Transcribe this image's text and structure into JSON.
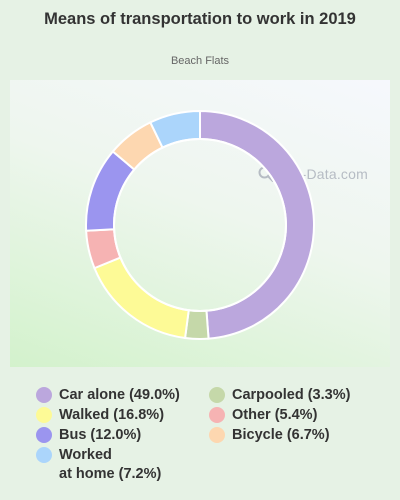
{
  "title": "Means of transportation to work in 2019",
  "subtitle": "Beach Flats",
  "watermark": "City-Data.com",
  "watermark_icon": "magnifier-icon",
  "chart_data": {
    "type": "pie",
    "variant": "donut",
    "title": "Means of transportation to work in 2019",
    "subtitle": "Beach Flats",
    "start_angle_deg": 0,
    "direction": "clockwise",
    "slices": [
      {
        "label": "Car alone",
        "value": 49.0,
        "color": "#bba7dd",
        "legend": "Car alone (49.0%)"
      },
      {
        "label": "Carpooled",
        "value": 3.3,
        "color": "#c5d8a9",
        "legend": "Carpooled (3.3%)"
      },
      {
        "label": "Walked",
        "value": 16.8,
        "color": "#fdfa96",
        "legend": "Walked (16.8%)"
      },
      {
        "label": "Other",
        "value": 5.4,
        "color": "#f6b3b3",
        "legend": "Other (5.4%)"
      },
      {
        "label": "Bus",
        "value": 12.0,
        "color": "#9b95ef",
        "legend": "Bus (12.0%)"
      },
      {
        "label": "Bicycle",
        "value": 6.7,
        "color": "#fdd7b0",
        "legend": "Bicycle (6.7%)"
      },
      {
        "label": "Worked at home",
        "value": 7.2,
        "color": "#abd5fb",
        "legend": "Worked\nat home (7.2%)"
      }
    ],
    "legend_placement": "bottom, two columns"
  },
  "legend": {
    "left": [
      {
        "text": "Car alone (49.0%)",
        "color": "#bba7dd"
      },
      {
        "text": "Walked (16.8%)",
        "color": "#fdfa96"
      },
      {
        "text": "Bus (12.0%)",
        "color": "#9b95ef"
      },
      {
        "text": "Worked\nat home (7.2%)",
        "color": "#abd5fb"
      }
    ],
    "right": [
      {
        "text": "Carpooled (3.3%)",
        "color": "#c5d8a9"
      },
      {
        "text": "Other (5.4%)",
        "color": "#f6b3b3"
      },
      {
        "text": "Bicycle (6.7%)",
        "color": "#fdd7b0"
      }
    ]
  }
}
